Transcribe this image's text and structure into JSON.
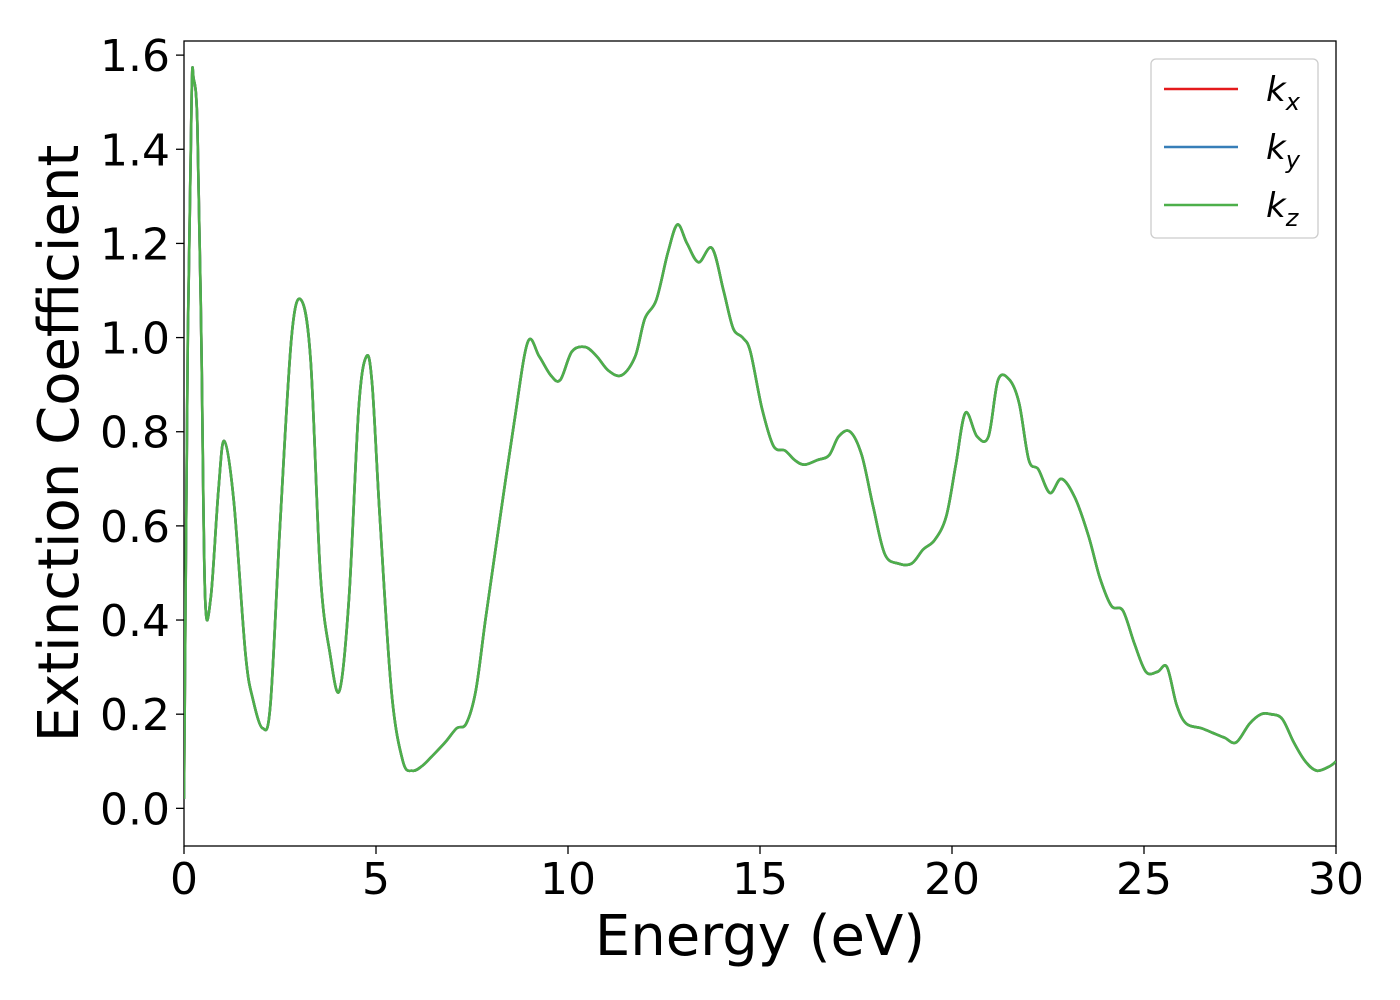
{
  "chart_data": {
    "type": "line",
    "title": "",
    "xlabel": "Energy (eV)",
    "ylabel": "Extinction Coefficient",
    "xlim": [
      0,
      30
    ],
    "ylim": [
      -0.08,
      1.63
    ],
    "xticks": [
      0,
      5,
      10,
      15,
      20,
      25,
      30
    ],
    "xtick_labels": [
      "0",
      "5",
      "10",
      "15",
      "20",
      "25",
      "30"
    ],
    "yticks": [
      0.0,
      0.2,
      0.4,
      0.6,
      0.8,
      1.0,
      1.2,
      1.4,
      1.6
    ],
    "ytick_labels": [
      "0.0",
      "0.2",
      "0.4",
      "0.6",
      "0.8",
      "1.0",
      "1.2",
      "1.4",
      "1.6"
    ],
    "grid": false,
    "legend_position": "top-right",
    "x": [
      0,
      0.1,
      0.2,
      0.25,
      0.35,
      0.45,
      0.55,
      0.7,
      0.9,
      1.05,
      1.3,
      1.6,
      1.8,
      2.05,
      2.25,
      2.5,
      2.8,
      3.05,
      3.3,
      3.55,
      3.8,
      4.05,
      4.3,
      4.55,
      4.75,
      4.9,
      5.1,
      5.4,
      5.7,
      5.95,
      6.2,
      6.45,
      6.8,
      7.1,
      7.35,
      7.6,
      7.85,
      8.2,
      8.6,
      8.95,
      9.25,
      9.55,
      9.8,
      10.1,
      10.45,
      10.75,
      11.05,
      11.4,
      11.75,
      12.0,
      12.3,
      12.6,
      12.85,
      13.1,
      13.4,
      13.75,
      14.05,
      14.3,
      14.55,
      14.75,
      15.05,
      15.35,
      15.65,
      15.9,
      16.15,
      16.5,
      16.8,
      17.05,
      17.35,
      17.65,
      17.95,
      18.25,
      18.6,
      18.95,
      19.25,
      19.55,
      19.85,
      20.1,
      20.35,
      20.65,
      20.95,
      21.2,
      21.5,
      21.75,
      22.0,
      22.25,
      22.55,
      22.85,
      23.2,
      23.55,
      23.85,
      24.15,
      24.45,
      24.75,
      25.05,
      25.35,
      25.6,
      25.85,
      26.1,
      26.5,
      26.8,
      27.1,
      27.4,
      27.75,
      28.05,
      28.3,
      28.6,
      28.9,
      29.2,
      29.5,
      29.85,
      30
    ],
    "series": [
      {
        "name": "k_x",
        "color": "#e41a1c",
        "values": [
          0.02,
          1.0,
          1.52,
          1.55,
          1.45,
          1.0,
          0.45,
          0.45,
          0.68,
          0.78,
          0.65,
          0.33,
          0.23,
          0.17,
          0.22,
          0.6,
          1.0,
          1.08,
          0.95,
          0.5,
          0.33,
          0.25,
          0.45,
          0.85,
          0.96,
          0.9,
          0.62,
          0.25,
          0.1,
          0.08,
          0.09,
          0.11,
          0.14,
          0.17,
          0.18,
          0.25,
          0.4,
          0.6,
          0.82,
          0.99,
          0.96,
          0.92,
          0.91,
          0.97,
          0.98,
          0.96,
          0.93,
          0.92,
          0.96,
          1.04,
          1.08,
          1.18,
          1.24,
          1.2,
          1.16,
          1.19,
          1.1,
          1.02,
          1.0,
          0.97,
          0.85,
          0.77,
          0.76,
          0.74,
          0.73,
          0.74,
          0.75,
          0.79,
          0.8,
          0.75,
          0.64,
          0.54,
          0.52,
          0.52,
          0.55,
          0.57,
          0.62,
          0.73,
          0.84,
          0.79,
          0.79,
          0.91,
          0.91,
          0.86,
          0.74,
          0.72,
          0.67,
          0.7,
          0.66,
          0.58,
          0.49,
          0.43,
          0.42,
          0.35,
          0.29,
          0.29,
          0.3,
          0.22,
          0.18,
          0.17,
          0.16,
          0.15,
          0.14,
          0.18,
          0.2,
          0.2,
          0.19,
          0.14,
          0.1,
          0.08,
          0.09,
          0.1
        ]
      },
      {
        "name": "k_y",
        "color": "#377eb8",
        "values": [
          0.02,
          1.0,
          1.52,
          1.55,
          1.45,
          1.0,
          0.45,
          0.45,
          0.68,
          0.78,
          0.65,
          0.33,
          0.23,
          0.17,
          0.22,
          0.6,
          1.0,
          1.08,
          0.95,
          0.5,
          0.33,
          0.25,
          0.45,
          0.85,
          0.96,
          0.9,
          0.62,
          0.25,
          0.1,
          0.08,
          0.09,
          0.11,
          0.14,
          0.17,
          0.18,
          0.25,
          0.4,
          0.6,
          0.82,
          0.99,
          0.96,
          0.92,
          0.91,
          0.97,
          0.98,
          0.96,
          0.93,
          0.92,
          0.96,
          1.04,
          1.08,
          1.18,
          1.24,
          1.2,
          1.16,
          1.19,
          1.1,
          1.02,
          1.0,
          0.97,
          0.85,
          0.77,
          0.76,
          0.74,
          0.73,
          0.74,
          0.75,
          0.79,
          0.8,
          0.75,
          0.64,
          0.54,
          0.52,
          0.52,
          0.55,
          0.57,
          0.62,
          0.73,
          0.84,
          0.79,
          0.79,
          0.91,
          0.91,
          0.86,
          0.74,
          0.72,
          0.67,
          0.7,
          0.66,
          0.58,
          0.49,
          0.43,
          0.42,
          0.35,
          0.29,
          0.29,
          0.3,
          0.22,
          0.18,
          0.17,
          0.16,
          0.15,
          0.14,
          0.18,
          0.2,
          0.2,
          0.19,
          0.14,
          0.1,
          0.08,
          0.09,
          0.1
        ]
      },
      {
        "name": "k_z",
        "color": "#4daf4a",
        "values": [
          0.02,
          1.0,
          1.52,
          1.55,
          1.45,
          1.0,
          0.45,
          0.45,
          0.68,
          0.78,
          0.65,
          0.33,
          0.23,
          0.17,
          0.22,
          0.6,
          1.0,
          1.08,
          0.95,
          0.5,
          0.33,
          0.25,
          0.45,
          0.85,
          0.96,
          0.9,
          0.62,
          0.25,
          0.1,
          0.08,
          0.09,
          0.11,
          0.14,
          0.17,
          0.18,
          0.25,
          0.4,
          0.6,
          0.82,
          0.99,
          0.96,
          0.92,
          0.91,
          0.97,
          0.98,
          0.96,
          0.93,
          0.92,
          0.96,
          1.04,
          1.08,
          1.18,
          1.24,
          1.2,
          1.16,
          1.19,
          1.1,
          1.02,
          1.0,
          0.97,
          0.85,
          0.77,
          0.76,
          0.74,
          0.73,
          0.74,
          0.75,
          0.79,
          0.8,
          0.75,
          0.64,
          0.54,
          0.52,
          0.52,
          0.55,
          0.57,
          0.62,
          0.73,
          0.84,
          0.79,
          0.79,
          0.91,
          0.91,
          0.86,
          0.74,
          0.72,
          0.67,
          0.7,
          0.66,
          0.58,
          0.49,
          0.43,
          0.42,
          0.35,
          0.29,
          0.29,
          0.3,
          0.22,
          0.18,
          0.17,
          0.16,
          0.15,
          0.14,
          0.18,
          0.2,
          0.2,
          0.19,
          0.14,
          0.1,
          0.08,
          0.09,
          0.1
        ]
      }
    ]
  },
  "legend": {
    "items": [
      {
        "base": "k",
        "sub": "x",
        "color": "#e41a1c"
      },
      {
        "base": "k",
        "sub": "y",
        "color": "#377eb8"
      },
      {
        "base": "k",
        "sub": "z",
        "color": "#4daf4a"
      }
    ]
  }
}
